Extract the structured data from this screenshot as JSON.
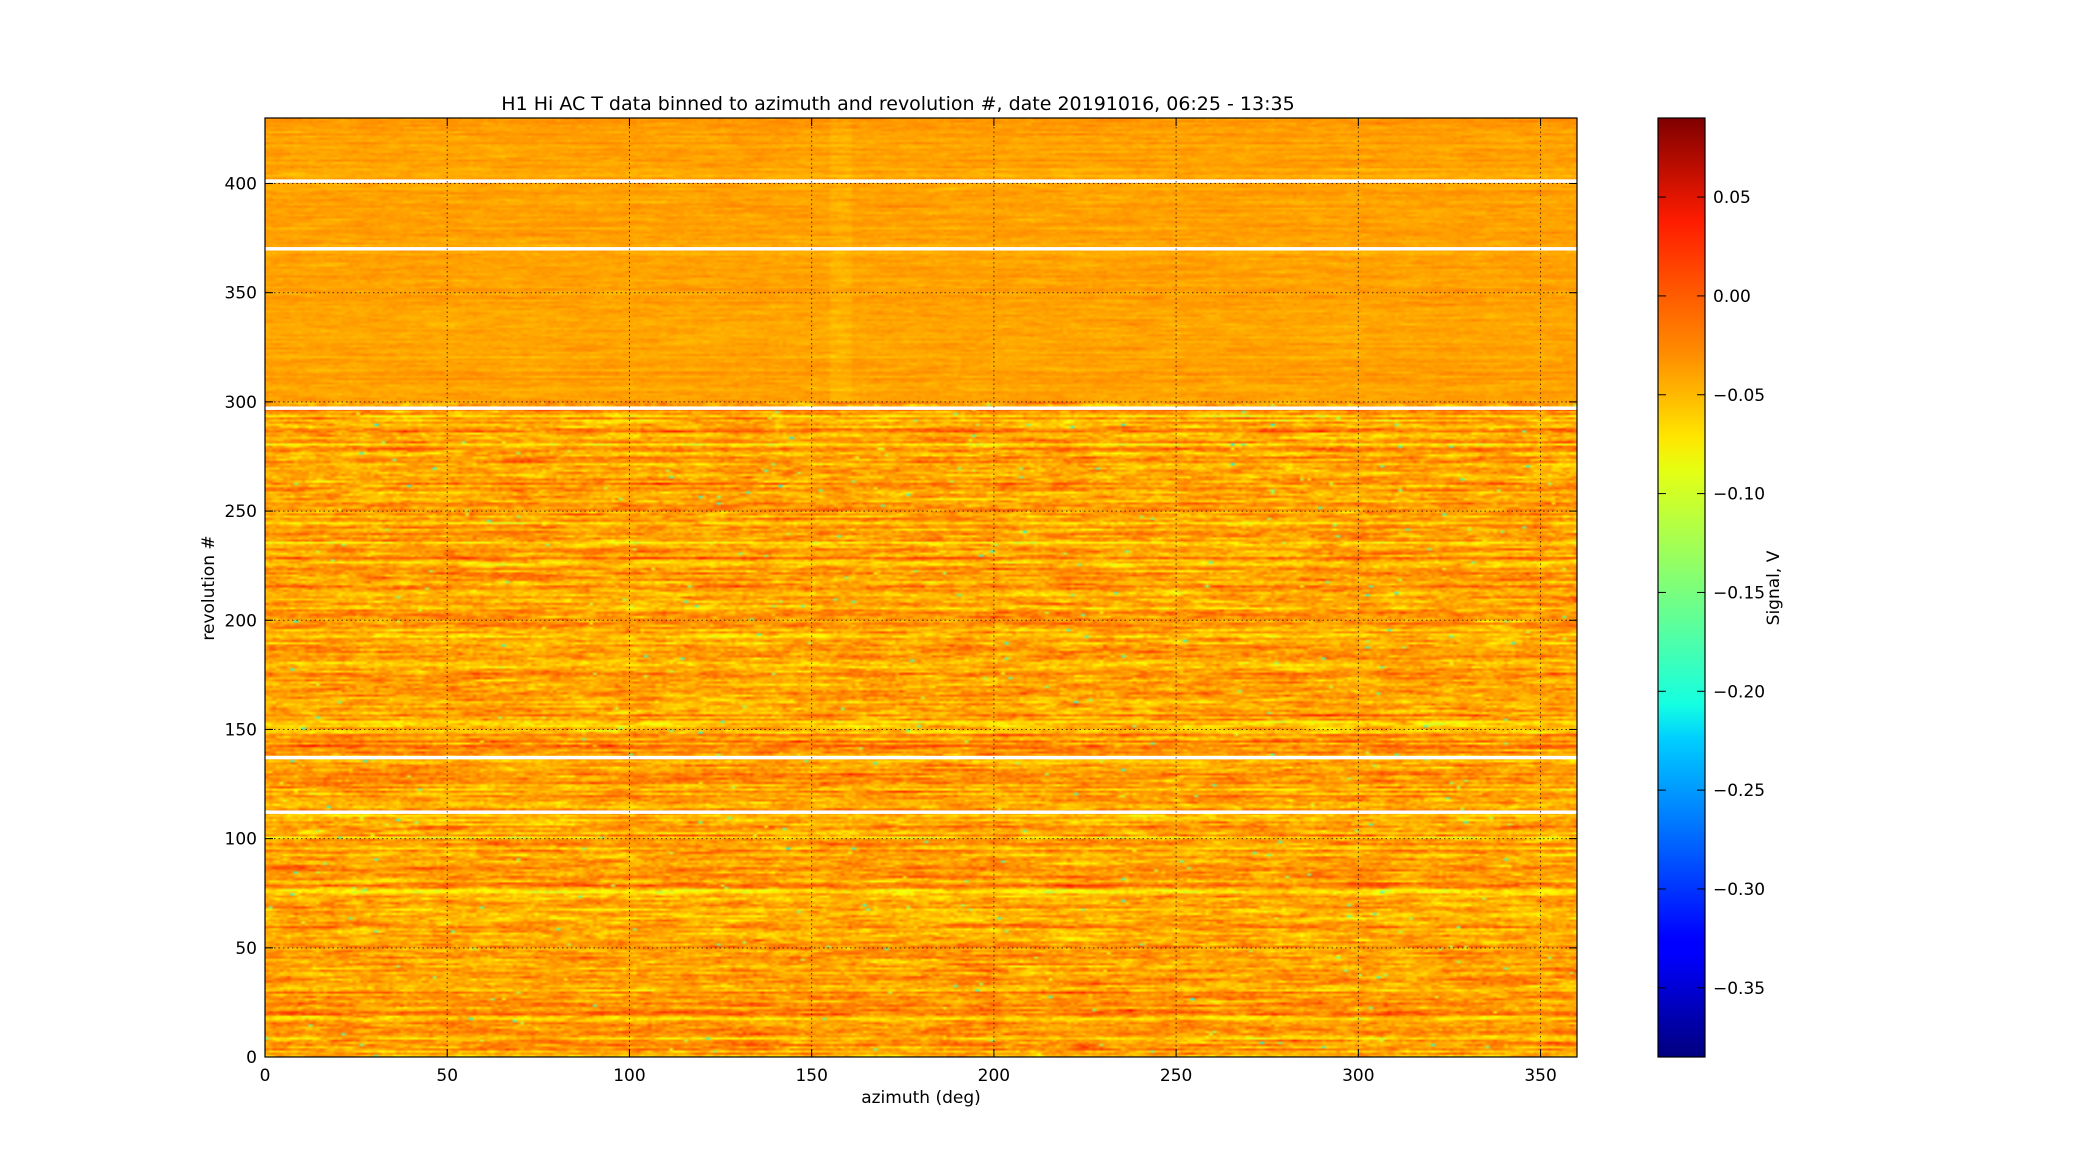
{
  "chart_data": {
    "type": "heatmap",
    "title": "H1 Hi AC T data binned to azimuth and revolution #, date 20191016, 06:25 - 13:35",
    "xlabel": "azimuth (deg)",
    "ylabel": "revolution #",
    "xlim": [
      0,
      360
    ],
    "ylim": [
      0,
      430
    ],
    "xticks": [
      0,
      50,
      100,
      150,
      200,
      250,
      300,
      350
    ],
    "yticks": [
      0,
      50,
      100,
      150,
      200,
      250,
      300,
      350,
      400
    ],
    "grid": true,
    "colormap": "jet",
    "colorbar": {
      "label": "Signal, V",
      "vmin": -0.385,
      "vmax": 0.09,
      "ticks": [
        0.05,
        0.0,
        -0.05,
        -0.1,
        -0.15,
        -0.2,
        -0.25,
        -0.3,
        -0.35
      ],
      "tick_labels": [
        "0.05",
        "0.00",
        "−0.05",
        "−0.10",
        "−0.15",
        "−0.20",
        "−0.25",
        "−0.30",
        "−0.35"
      ]
    },
    "typical_signal_V": -0.045,
    "quiet_region_revolutions": [
      300,
      430
    ],
    "noisy_region_revolutions": [
      0,
      300
    ],
    "missing_revolutions": [
      112,
      137,
      297,
      370,
      401
    ]
  }
}
